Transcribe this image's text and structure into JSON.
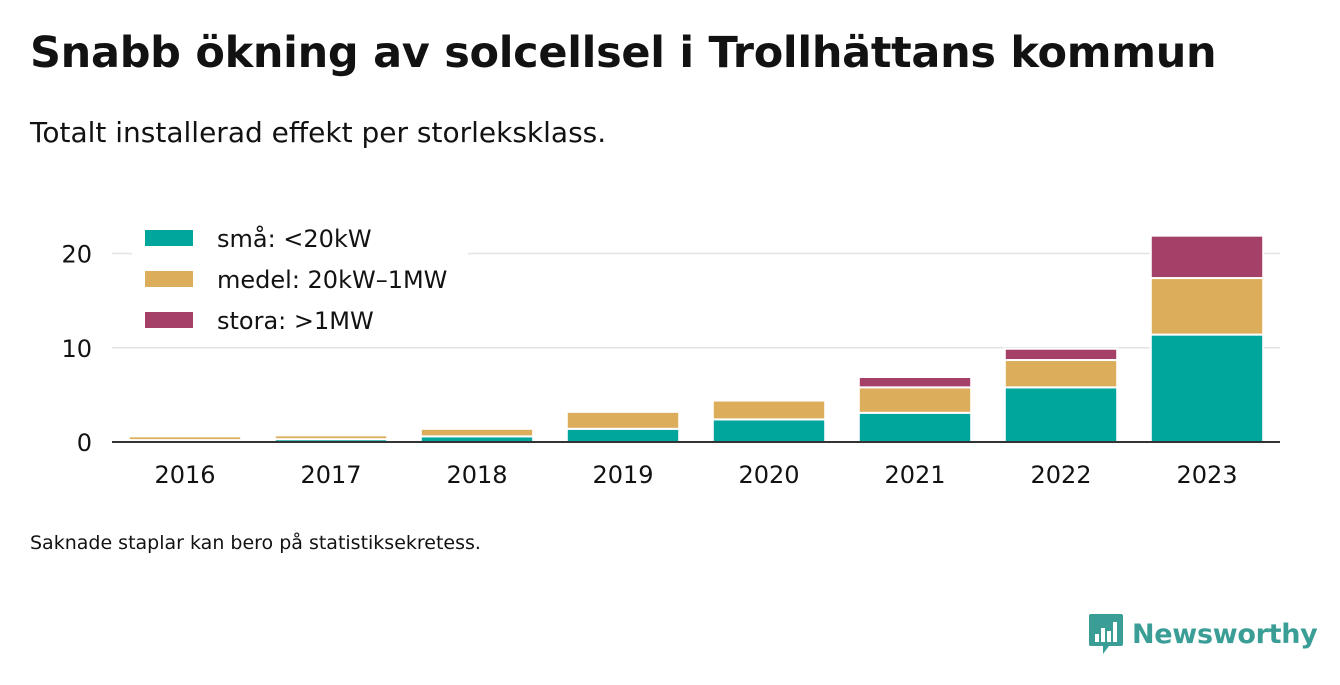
{
  "title": "Snabb ökning av solcellsel i Trollhättans kommun",
  "subtitle": "Totalt installerad effekt per storleksklass.",
  "note": "Saknade staplar kan bero på statistiksekretess.",
  "brand": {
    "name": "Newsworthy",
    "color": "#3a9e96",
    "icon": "newsworthy-logo-icon"
  },
  "chart_data": {
    "type": "bar",
    "stacked": true,
    "categories": [
      "2016",
      "2017",
      "2018",
      "2019",
      "2020",
      "2021",
      "2022",
      "2023"
    ],
    "series": [
      {
        "name": "små: <20kW",
        "color": "#00a69c",
        "values": [
          0.2,
          0.3,
          0.6,
          1.4,
          2.4,
          3.1,
          5.8,
          11.4
        ]
      },
      {
        "name": "medel: 20kW–1MW",
        "color": "#dcad5b",
        "values": [
          0.4,
          0.4,
          0.8,
          1.8,
          2.0,
          2.7,
          2.9,
          6.0
        ]
      },
      {
        "name": "stora: >1MW",
        "color": "#a54168",
        "values": [
          0,
          0,
          0,
          0,
          0,
          1.1,
          1.2,
          4.5
        ]
      }
    ],
    "xlabel": "",
    "ylabel": "",
    "ylim": [
      0,
      22.5
    ],
    "yticks": [
      0,
      10,
      20
    ],
    "grid": true,
    "legend": "top-left"
  }
}
